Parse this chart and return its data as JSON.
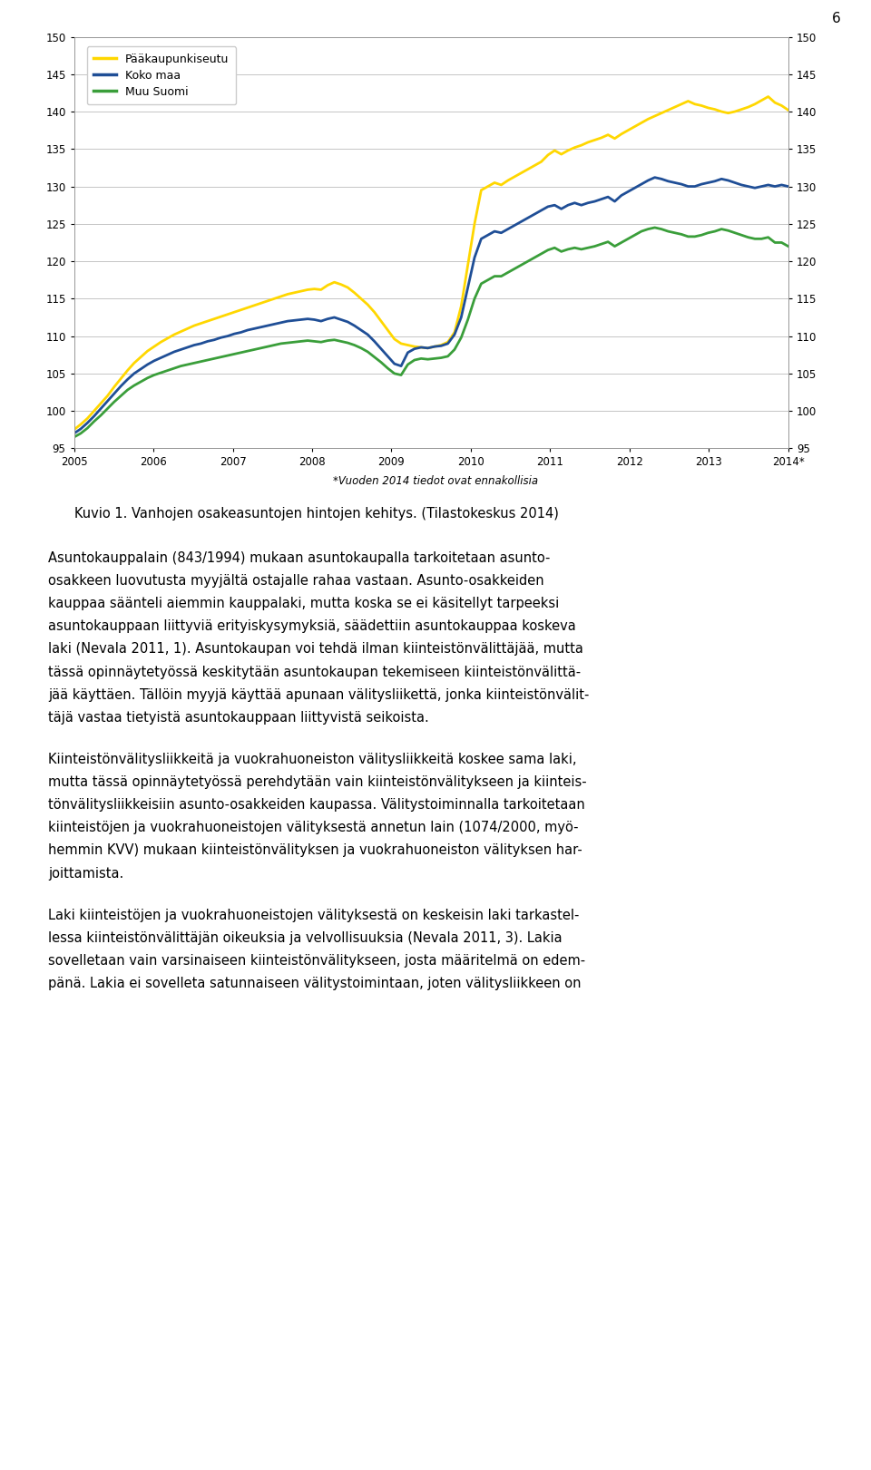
{
  "page_number": "6",
  "x_note": "*Vuoden 2014 tiedot ovat ennakollisia",
  "caption": "Kuvio 1. Vanhojen osakeasuntojen hintojen kehitys. (Tilastokeskus 2014)",
  "ylim": [
    95,
    150
  ],
  "yticks": [
    95,
    100,
    105,
    110,
    115,
    120,
    125,
    130,
    135,
    140,
    145,
    150
  ],
  "series_colors": [
    "#FFD700",
    "#1F4E96",
    "#3A9E3A"
  ],
  "series_labels": [
    "Pääkaupunkiseutu",
    "Koko maa",
    "Muu Suomi"
  ],
  "linewidth": 2.0,
  "pks_data": [
    97.5,
    98.2,
    99.0,
    100.0,
    101.0,
    102.0,
    103.2,
    104.3,
    105.4,
    106.4,
    107.2,
    108.0,
    108.6,
    109.2,
    109.7,
    110.2,
    110.6,
    111.0,
    111.4,
    111.7,
    112.0,
    112.3,
    112.6,
    112.9,
    113.2,
    113.5,
    113.8,
    114.1,
    114.4,
    114.7,
    115.0,
    115.3,
    115.6,
    115.8,
    116.0,
    116.2,
    116.3,
    116.2,
    116.8,
    117.2,
    116.9,
    116.5,
    115.8,
    115.0,
    114.2,
    113.2,
    112.0,
    110.8,
    109.6,
    109.0,
    108.8,
    108.6,
    108.5,
    108.4,
    108.6,
    108.8,
    109.2,
    110.5,
    114.0,
    119.5,
    125.0,
    129.5,
    130.0,
    130.5,
    130.2,
    130.8,
    131.3,
    131.8,
    132.3,
    132.8,
    133.3,
    134.2,
    134.8,
    134.3,
    134.8,
    135.2,
    135.5,
    135.9,
    136.2,
    136.5,
    136.9,
    136.4,
    137.0,
    137.5,
    138.0,
    138.5,
    139.0,
    139.4,
    139.8,
    140.2,
    140.6,
    141.0,
    141.4,
    141.0,
    140.8,
    140.5,
    140.3,
    140.0,
    139.8,
    140.0,
    140.3,
    140.6,
    141.0,
    141.5,
    142.0,
    141.2,
    140.8,
    140.2
  ],
  "koko_data": [
    97.0,
    97.6,
    98.4,
    99.3,
    100.3,
    101.3,
    102.3,
    103.3,
    104.2,
    105.0,
    105.6,
    106.2,
    106.7,
    107.1,
    107.5,
    107.9,
    108.2,
    108.5,
    108.8,
    109.0,
    109.3,
    109.5,
    109.8,
    110.0,
    110.3,
    110.5,
    110.8,
    111.0,
    111.2,
    111.4,
    111.6,
    111.8,
    112.0,
    112.1,
    112.2,
    112.3,
    112.2,
    112.0,
    112.3,
    112.5,
    112.2,
    111.9,
    111.4,
    110.8,
    110.2,
    109.3,
    108.3,
    107.3,
    106.3,
    106.0,
    107.8,
    108.3,
    108.5,
    108.4,
    108.6,
    108.7,
    109.0,
    110.2,
    112.5,
    116.5,
    120.5,
    123.0,
    123.5,
    124.0,
    123.8,
    124.3,
    124.8,
    125.3,
    125.8,
    126.3,
    126.8,
    127.3,
    127.5,
    127.0,
    127.5,
    127.8,
    127.5,
    127.8,
    128.0,
    128.3,
    128.6,
    128.0,
    128.8,
    129.3,
    129.8,
    130.3,
    130.8,
    131.2,
    131.0,
    130.7,
    130.5,
    130.3,
    130.0,
    130.0,
    130.3,
    130.5,
    130.7,
    131.0,
    130.8,
    130.5,
    130.2,
    130.0,
    129.8,
    130.0,
    130.2,
    130.0,
    130.2,
    130.0
  ],
  "muu_data": [
    96.5,
    97.0,
    97.7,
    98.6,
    99.4,
    100.3,
    101.2,
    102.0,
    102.8,
    103.4,
    103.9,
    104.4,
    104.8,
    105.1,
    105.4,
    105.7,
    106.0,
    106.2,
    106.4,
    106.6,
    106.8,
    107.0,
    107.2,
    107.4,
    107.6,
    107.8,
    108.0,
    108.2,
    108.4,
    108.6,
    108.8,
    109.0,
    109.1,
    109.2,
    109.3,
    109.4,
    109.3,
    109.2,
    109.4,
    109.5,
    109.3,
    109.1,
    108.8,
    108.4,
    107.9,
    107.2,
    106.5,
    105.7,
    105.0,
    104.8,
    106.2,
    106.8,
    107.0,
    106.9,
    107.0,
    107.1,
    107.3,
    108.2,
    109.8,
    112.2,
    115.0,
    117.0,
    117.5,
    118.0,
    118.0,
    118.5,
    119.0,
    119.5,
    120.0,
    120.5,
    121.0,
    121.5,
    121.8,
    121.3,
    121.6,
    121.8,
    121.6,
    121.8,
    122.0,
    122.3,
    122.6,
    122.0,
    122.5,
    123.0,
    123.5,
    124.0,
    124.3,
    124.5,
    124.3,
    124.0,
    123.8,
    123.6,
    123.3,
    123.3,
    123.5,
    123.8,
    124.0,
    124.3,
    124.1,
    123.8,
    123.5,
    123.2,
    123.0,
    123.0,
    123.2,
    122.5,
    122.5,
    122.0
  ],
  "x_labels": [
    "2005",
    "2006",
    "2007",
    "2008",
    "2009",
    "2010",
    "2011",
    "2012",
    "2013",
    "2014*"
  ],
  "background_color": "#FFFFFF",
  "grid_color": "#BBBBBB",
  "para1_lines": [
    "Asuntokauppalain (843/1994) mukaan asuntokaupalla tarkoitetaan asunto-",
    "osakkeen luovutusta myyjältä ostajalle rahaa vastaan. Asunto-osakkeiden",
    "kauppaa säänteli aiemmin kauppalaki, mutta koska se ei käsitellyt tarpeeksi",
    "asuntokauppaan liittyviä erityiskysymyksiä, säädettiin asuntokauppaa koskeva",
    "laki (Nevala 2011, 1). Asuntokaupan voi tehdä ilman kiinteistönvälittäjää, mutta",
    "tässä opinnäytetyössä keskitytään asuntokaupan tekemiseen kiinteistönvälittä-",
    "jää käyttäen. Tällöin myyjä käyttää apunaan välitysliikettä, jonka kiinteistönvälit-",
    "täjä vastaa tietyistä asuntokauppaan liittyvistä seikoista."
  ],
  "para2_lines": [
    "Kiinteistönvälitysliikkeitä ja vuokrahuoneiston välitysliikkeitä koskee sama laki,",
    "mutta tässä opinnäytetyössä perehdytään vain kiinteistönvälitykseen ja kiinteis-",
    "tönvälitysliikkeisiin asunto-osakkeiden kaupassa. Välitystoiminnalla tarkoitetaan",
    "kiinteistöjen ja vuokrahuoneistojen välityksestä annetun lain (1074/2000, myö-",
    "hemmin KVV) mukaan kiinteistönvälityksen ja vuokrahuoneiston välityksen har-",
    "joittamista."
  ],
  "para3_lines": [
    "Laki kiinteistöjen ja vuokrahuoneistojen välityksestä on keskeisin laki tarkastel-",
    "lessa kiinteistönvälittäjän oikeuksia ja velvollisuuksia (Nevala 2011, 3). Lakia",
    "sovelletaan vain varsinaiseen kiinteistönvälitykseen, josta määritelmä on edem-",
    "pänä. Lakia ei sovelleta satunnaiseen välitystoimintaan, joten välitysliikkeen on"
  ]
}
